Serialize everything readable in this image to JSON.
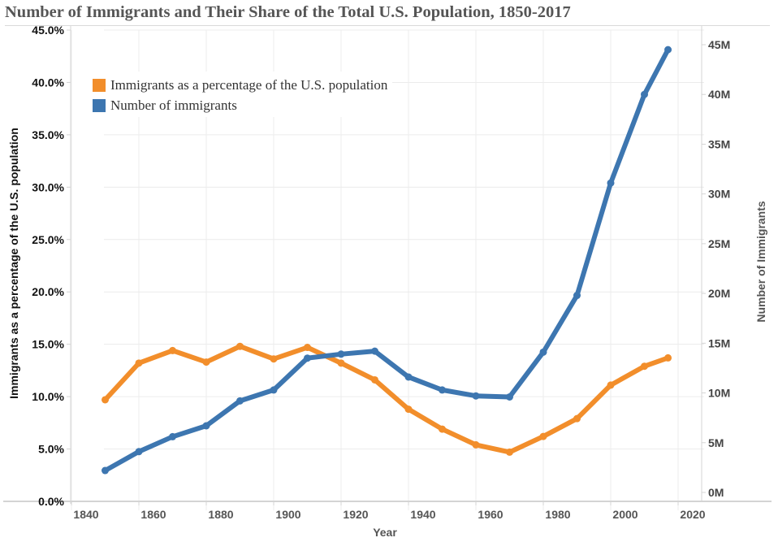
{
  "chart_data": {
    "type": "line",
    "title": "Number of Immigrants and Their Share of the Total U.S. Population, 1850-2017",
    "xlabel": "Year",
    "ylabel_left": "Immigrants as a percentage of the U.S. population",
    "ylabel_right": "Number of Immigrants",
    "x": [
      1850,
      1860,
      1870,
      1880,
      1890,
      1900,
      1910,
      1920,
      1930,
      1940,
      1950,
      1960,
      1970,
      1980,
      1990,
      2000,
      2010,
      2017
    ],
    "x_ticks": [
      "1840",
      "1860",
      "1880",
      "1900",
      "1920",
      "1940",
      "1960",
      "1980",
      "2000",
      "2020"
    ],
    "x_tick_values": [
      1840,
      1860,
      1880,
      1900,
      1920,
      1940,
      1960,
      1980,
      2000,
      2020
    ],
    "xlim": [
      1840,
      2020
    ],
    "ylim_left": [
      0,
      45
    ],
    "ylim_right": [
      0,
      45
    ],
    "y_ticks_left": [
      "0.0%",
      "5.0%",
      "10.0%",
      "15.0%",
      "20.0%",
      "25.0%",
      "30.0%",
      "35.0%",
      "40.0%",
      "45.0%"
    ],
    "y_tick_values_left": [
      0,
      5,
      10,
      15,
      20,
      25,
      30,
      35,
      40,
      45
    ],
    "y_ticks_right": [
      "0M",
      "5M",
      "10M",
      "15M",
      "20M",
      "25M",
      "30M",
      "35M",
      "40M",
      "45M"
    ],
    "y_tick_values_right": [
      0,
      5,
      10,
      15,
      20,
      25,
      30,
      35,
      40,
      45
    ],
    "grid": true,
    "legend_position": "top-left",
    "series": [
      {
        "name": "Immigrants as a percentage of the U.S. population",
        "axis": "left",
        "unit": "percent",
        "color": "#f28e2b",
        "values": [
          9.7,
          13.2,
          14.4,
          13.3,
          14.8,
          13.6,
          14.7,
          13.2,
          11.6,
          8.8,
          6.9,
          5.4,
          4.7,
          6.2,
          7.9,
          11.1,
          12.9,
          13.7
        ]
      },
      {
        "name": "Number of immigrants",
        "axis": "right",
        "unit": "millions",
        "color": "#3d76b0",
        "values": [
          2.2,
          4.1,
          5.6,
          6.7,
          9.2,
          10.3,
          13.5,
          13.9,
          14.2,
          11.6,
          10.3,
          9.7,
          9.6,
          14.1,
          19.8,
          31.1,
          40.0,
          44.5
        ]
      }
    ]
  },
  "colors": {
    "orange": "#f28e2b",
    "blue": "#3d76b0",
    "grid": "#ececec",
    "axis": "#d4d4d4"
  }
}
